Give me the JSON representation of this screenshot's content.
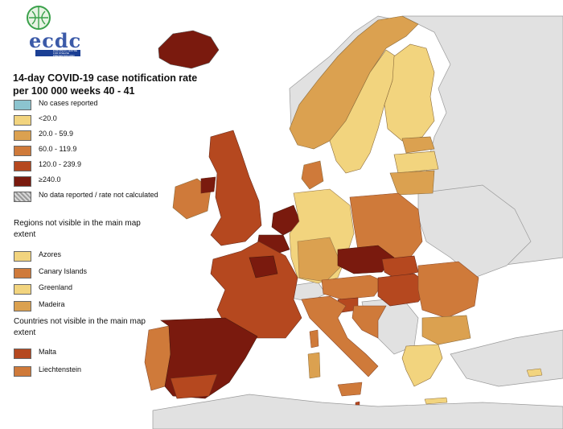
{
  "logo": {
    "text": "ecdc",
    "subtitle": "EUROPEAN CENTRE FOR DISEASE PREVENTION AND CONTROL"
  },
  "title": "14-day COVID-19 case notification rate per 100 000 weeks 40 - 41",
  "legend": [
    {
      "label": "No cases reported",
      "color": "#8cc4cf"
    },
    {
      "label": "<20.0",
      "color": "#f2d47e"
    },
    {
      "label": "20.0 - 59.9",
      "color": "#dba150"
    },
    {
      "label": "60.0 - 119.9",
      "color": "#cf7a3a"
    },
    {
      "label": "120.0 - 239.9",
      "color": "#b5481f"
    },
    {
      "label": "≥240.0",
      "color": "#7a1a0e"
    },
    {
      "label": "No data reported / rate not calculated",
      "color": "hatch"
    }
  ],
  "regions_title": "Regions not visible in the main map extent",
  "regions": [
    {
      "label": "Azores",
      "color": "#f2d47e"
    },
    {
      "label": "Canary Islands",
      "color": "#cf7a3a"
    },
    {
      "label": "Greenland",
      "color": "#f2d47e"
    },
    {
      "label": "Madeira",
      "color": "#dba150"
    }
  ],
  "countries_title": "Countries not visible in the main map extent",
  "countries": [
    {
      "label": "Malta",
      "color": "#b5481f"
    },
    {
      "label": "Liechtenstein",
      "color": "#cf7a3a"
    }
  ],
  "colors": {
    "non_eu": "#e1e1e1",
    "sea": "#ffffff",
    "border": "#8c8c8c"
  }
}
